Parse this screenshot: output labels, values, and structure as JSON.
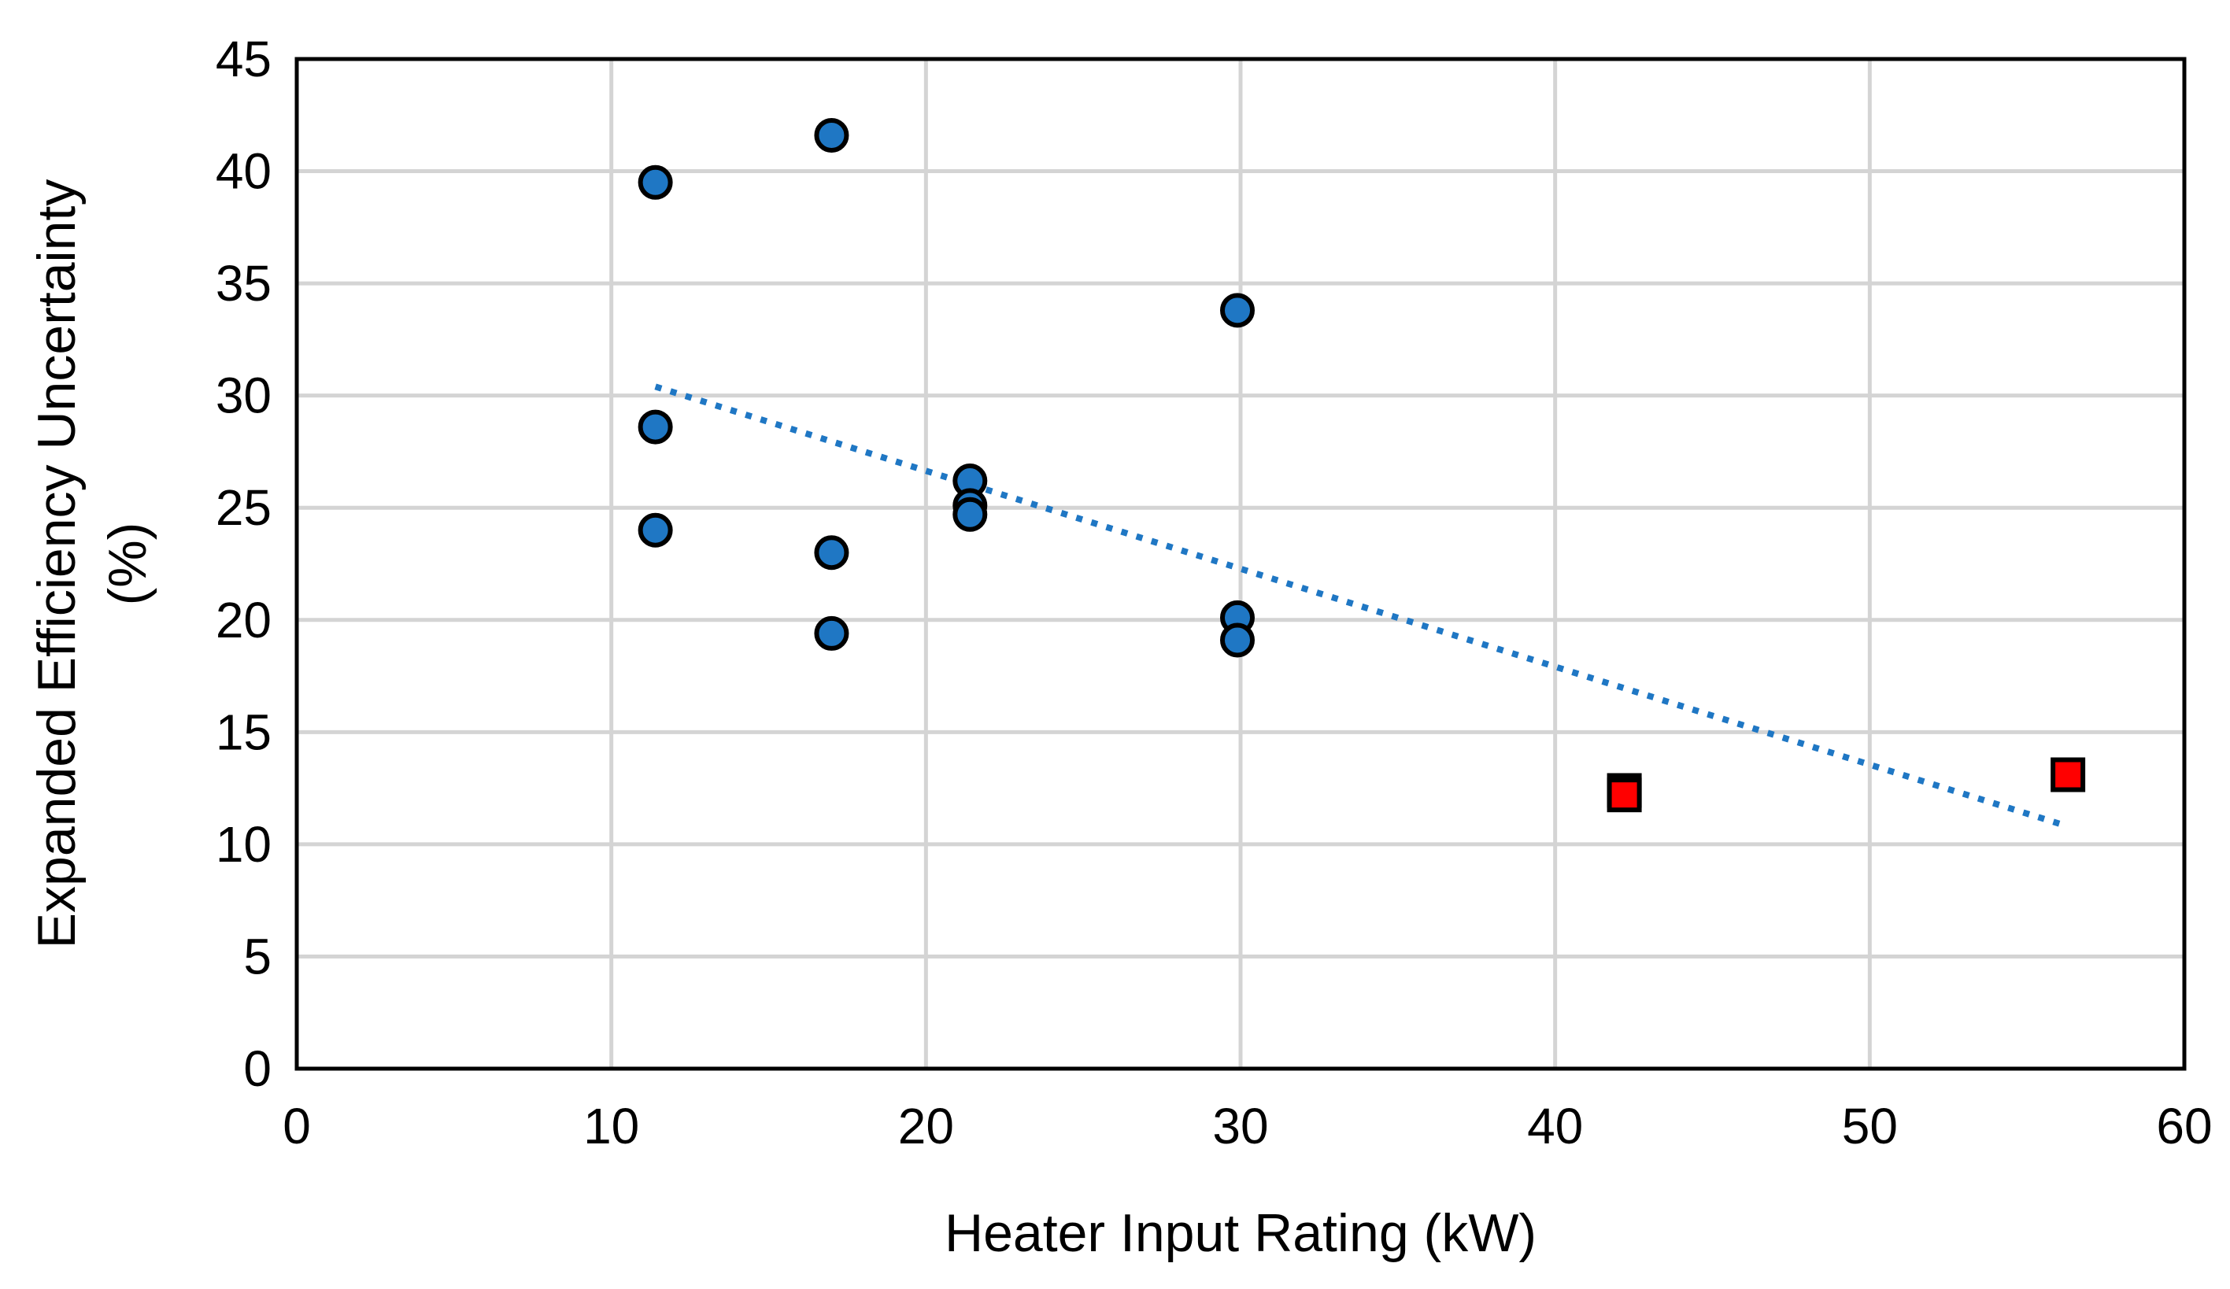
{
  "chart_data": {
    "type": "scatter",
    "title": "",
    "xlabel": "Heater Input Rating (kW)",
    "ylabel_lines": [
      "Expanded Efficiency Uncertainty",
      "(%)"
    ],
    "xlim": [
      0,
      60
    ],
    "ylim": [
      0,
      45
    ],
    "xticks": [
      "0",
      "10",
      "20",
      "30",
      "40",
      "50",
      "60"
    ],
    "yticks": [
      "0",
      "5",
      "10",
      "15",
      "20",
      "25",
      "30",
      "35",
      "40",
      "45"
    ],
    "grid": true,
    "legend": "none",
    "series": [
      {
        "name": "circles",
        "marker": "circle",
        "color": "#1f77c4",
        "points": [
          [
            11.4,
            39.5
          ],
          [
            11.4,
            28.6
          ],
          [
            11.4,
            24.0
          ],
          [
            17.0,
            41.6
          ],
          [
            17.0,
            23.0
          ],
          [
            17.0,
            19.4
          ],
          [
            21.4,
            26.2
          ],
          [
            21.4,
            25.1
          ],
          [
            21.4,
            24.7
          ],
          [
            29.9,
            33.8
          ],
          [
            29.9,
            20.1
          ],
          [
            29.9,
            19.1
          ]
        ]
      },
      {
        "name": "squares",
        "marker": "square",
        "color": "#ff0000",
        "points": [
          [
            42.2,
            12.4
          ],
          [
            42.2,
            12.2
          ],
          [
            56.3,
            13.1
          ]
        ]
      }
    ],
    "trendline": {
      "style": "dotted",
      "color": "#1f77c4",
      "from": [
        11.4,
        30.4
      ],
      "to": [
        56.3,
        10.8
      ]
    }
  }
}
